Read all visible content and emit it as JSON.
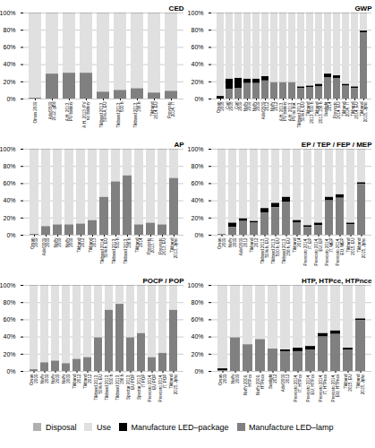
{
  "chart_data": [
    {
      "type": "bar",
      "title": "CED",
      "stacked": true,
      "grid": true,
      "legend": "bottom",
      "categories": [
        "Oman 2009",
        "Adef2009\n2012, gBd",
        "A.H. 2013,\nPV battery",
        "A.H. 2013, PV\nno battery",
        "Tikband 2013,\n50% A, EU",
        "Tikband 2013,\n500 h",
        "Tikband 2013,\n156 h",
        "Tikband\n2014, EU",
        "Prevosto\n2014, IT"
      ],
      "series": [
        {
          "name": "Disposal",
          "color": "#b0b0b0",
          "values": [
            1,
            1,
            1,
            1,
            1,
            1,
            1,
            1,
            1
          ]
        },
        {
          "name": "Use",
          "color": "#e0e0e0",
          "values": [
            98,
            70,
            69,
            69,
            91,
            89,
            87,
            92,
            90
          ]
        },
        {
          "name": "Manufacture LED–package",
          "color": "#000000",
          "values": [
            0,
            0,
            0,
            0,
            0,
            0,
            0,
            0,
            0
          ]
        },
        {
          "name": "Manufacture LED–lamp",
          "color": "#808080",
          "values": [
            1,
            29,
            30,
            30,
            8,
            10,
            12,
            7,
            9
          ]
        }
      ],
      "ylim": [
        0,
        100
      ],
      "yticks": [
        {
          "value": 0,
          "label": "0%"
        },
        {
          "value": 20,
          "label": "20%"
        },
        {
          "value": 40,
          "label": "40%"
        },
        {
          "value": 60,
          "label": "60%"
        },
        {
          "value": 80,
          "label": "80%"
        },
        {
          "value": 100,
          "label": "100%"
        }
      ]
    },
    {
      "type": "bar",
      "title": "GWP",
      "stacked": true,
      "grid": true,
      "legend": "bottom",
      "categories": [
        "Oman\n2008",
        "Curl\n2008",
        "Curl\n2009",
        "Naffy\n2009",
        "Naffy\n2009",
        "Adef2009\n2012",
        "Naffy\n2012",
        "A.H. 2013,\nPV battery",
        "A.H. 2013,\nPV no bat.",
        "Tikband 2013,\n50% h, EU",
        "Tikband\n2013, 500 h",
        "Tikband\n2013, 156 h",
        "Sunlight\n2014",
        "Prevosto\n2014, EU",
        "Tikband\n2014, IT",
        "Tikband\n2014, EU",
        "Tikband\n2015, Jpho"
      ],
      "series": [
        {
          "name": "Disposal",
          "color": "#b0b0b0",
          "values": [
            1,
            1,
            1,
            1,
            1,
            1,
            1,
            1,
            1,
            1,
            1,
            1,
            1,
            1,
            1,
            1,
            1
          ]
        },
        {
          "name": "Use",
          "color": "#e0e0e0",
          "values": [
            96,
            76,
            75,
            76,
            76,
            73,
            80,
            80,
            80,
            85,
            84,
            82,
            70,
            72,
            82,
            85,
            20
          ]
        },
        {
          "name": "Manufacture LED–package",
          "color": "#000000",
          "values": [
            3,
            12,
            12,
            5,
            5,
            5,
            0,
            0,
            0,
            2,
            2,
            3,
            4,
            3,
            2,
            2,
            2
          ]
        },
        {
          "name": "Manufacture LED–lamp",
          "color": "#808080",
          "values": [
            0,
            11,
            12,
            18,
            18,
            21,
            19,
            19,
            19,
            12,
            13,
            14,
            25,
            24,
            15,
            12,
            77
          ]
        }
      ],
      "ylim": [
        0,
        100
      ],
      "yticks": [
        {
          "value": 0,
          "label": "0%"
        },
        {
          "value": 20,
          "label": "20%"
        },
        {
          "value": 40,
          "label": "40%"
        },
        {
          "value": 60,
          "label": "60%"
        },
        {
          "value": 80,
          "label": "80%"
        },
        {
          "value": 100,
          "label": "100%"
        }
      ]
    },
    {
      "type": "bar",
      "title": "AP",
      "stacked": true,
      "grid": true,
      "legend": "bottom",
      "categories": [
        "Oman\n2009",
        "Adef2009\n2009",
        "Naffy\n2009",
        "Naffy\n2009",
        "Tikband\n2012",
        "Tikband\n2013",
        "Tikband 2014,\n50% h, EU",
        "Tikband 2013,\n500 h",
        "Tikband 2013,\n156 h",
        "Tikband\n2014",
        "Prevosto\n2013, IT",
        "Prevosto\n2013, EU",
        "Tikband\n2013, Jpho"
      ],
      "series": [
        {
          "name": "Disposal",
          "color": "#b0b0b0",
          "values": [
            1,
            1,
            1,
            1,
            1,
            1,
            1,
            1,
            1,
            1,
            1,
            1,
            1
          ]
        },
        {
          "name": "Use",
          "color": "#e0e0e0",
          "values": [
            98,
            89,
            87,
            87,
            86,
            82,
            55,
            37,
            30,
            87,
            85,
            87,
            33
          ]
        },
        {
          "name": "Manufacture LED–package",
          "color": "#000000",
          "values": [
            0,
            0,
            0,
            0,
            0,
            0,
            0,
            0,
            0,
            0,
            0,
            0,
            0
          ]
        },
        {
          "name": "Manufacture LED–lamp",
          "color": "#808080",
          "values": [
            1,
            10,
            12,
            12,
            13,
            17,
            44,
            62,
            69,
            12,
            14,
            12,
            66
          ]
        }
      ],
      "ylim": [
        0,
        100
      ],
      "yticks": [
        {
          "value": 0,
          "label": "0%"
        },
        {
          "value": 20,
          "label": "20%"
        },
        {
          "value": 40,
          "label": "40%"
        },
        {
          "value": 60,
          "label": "60%"
        },
        {
          "value": 80,
          "label": "80%"
        },
        {
          "value": 100,
          "label": "100%"
        }
      ]
    },
    {
      "type": "bar",
      "title": "EP / TEP / FEP / MEP",
      "stacked": true,
      "grid": true,
      "legend": "bottom",
      "categories": [
        "Oman\n2009",
        "Naffy\n2009",
        "Adef2009\n2012",
        "Tikband\n2012",
        "Tikband 2013,\n50% h, EU",
        "Tikband 2013,\n500 h, EU",
        "Tikband 2013,\n156 h, EU",
        "Tikband\n2014",
        "Prevosto 2014,\nIT, EP",
        "Prevosto 2014,\nEU, EP",
        "Prevosto 2014,\nIT, MEP",
        "Prevosto 2014,\nEU, MEP",
        "Tikband\n2015, EU",
        "Tikband\n2015, Jpho"
      ],
      "series": [
        {
          "name": "Disposal",
          "color": "#b0b0b0",
          "values": [
            1,
            1,
            1,
            1,
            1,
            1,
            1,
            1,
            1,
            1,
            1,
            1,
            1,
            1
          ]
        },
        {
          "name": "Use",
          "color": "#e0e0e0",
          "values": [
            98,
            85,
            80,
            83,
            68,
            62,
            55,
            82,
            88,
            85,
            55,
            52,
            85,
            38
          ]
        },
        {
          "name": "Manufacture LED–package",
          "color": "#000000",
          "values": [
            0,
            5,
            3,
            2,
            5,
            5,
            6,
            3,
            2,
            3,
            4,
            4,
            2,
            2
          ]
        },
        {
          "name": "Manufacture LED–lamp",
          "color": "#808080",
          "values": [
            1,
            9,
            16,
            14,
            26,
            32,
            38,
            14,
            9,
            11,
            40,
            43,
            12,
            59
          ]
        }
      ],
      "ylim": [
        0,
        100
      ],
      "yticks": [
        {
          "value": 0,
          "label": "0%"
        },
        {
          "value": 20,
          "label": "20%"
        },
        {
          "value": 40,
          "label": "40%"
        },
        {
          "value": 60,
          "label": "60%"
        },
        {
          "value": 80,
          "label": "80%"
        },
        {
          "value": 100,
          "label": "100%"
        }
      ]
    },
    {
      "type": "bar",
      "title": "POCP / POP",
      "stacked": true,
      "grid": true,
      "legend": "bottom",
      "categories": [
        "Oman\n2009",
        "Naffy\n2009",
        "Naffy\n2009",
        "Naffy\n2009",
        "Tikband\n2012",
        "Tikband\n2012",
        "Tikband 2013,\n50% h, EU",
        "Tikband 2013,\n500 h",
        "Tikband 2013,\n156 h",
        "Spectar 2013,\nEU POP",
        "Spectar 2013,\nIT POP",
        "Prevosto 2014,\nEU POP",
        "Prevosto 2014,\nIT, POP",
        "Tikband\n2015, Jpho"
      ],
      "series": [
        {
          "name": "Disposal",
          "color": "#b0b0b0",
          "values": [
            1,
            1,
            1,
            1,
            1,
            1,
            1,
            1,
            1,
            1,
            1,
            1,
            1,
            1
          ]
        },
        {
          "name": "Use",
          "color": "#e0e0e0",
          "values": [
            97,
            89,
            87,
            90,
            85,
            83,
            60,
            28,
            21,
            60,
            55,
            83,
            78,
            28
          ]
        },
        {
          "name": "Manufacture LED–package",
          "color": "#000000",
          "values": [
            0,
            0,
            0,
            0,
            0,
            0,
            0,
            0,
            0,
            0,
            0,
            0,
            0,
            0
          ]
        },
        {
          "name": "Manufacture LED–lamp",
          "color": "#808080",
          "values": [
            2,
            10,
            12,
            9,
            14,
            16,
            39,
            71,
            78,
            39,
            44,
            16,
            21,
            71
          ]
        }
      ],
      "ylim": [
        0,
        100
      ],
      "yticks": [
        {
          "value": 0,
          "label": "0%"
        },
        {
          "value": 20,
          "label": "20%"
        },
        {
          "value": 40,
          "label": "40%"
        },
        {
          "value": 60,
          "label": "60%"
        },
        {
          "value": 80,
          "label": "80%"
        },
        {
          "value": 100,
          "label": "100%"
        }
      ]
    },
    {
      "type": "bar",
      "title": "HTP, HTPce, HTPnce",
      "stacked": true,
      "grid": true,
      "legend": "bottom",
      "categories": [
        "Oman\n2009",
        "Naffy\n2009",
        "Naffy 2009,\nHTPce",
        "Naffy 2009,\nHTPnce",
        "Sunlight\n2012",
        "Adef2009\n2012",
        "Prevosto 2014,\nIT, HTPce",
        "Prevosto 2014,\nEU, HTPce",
        "Prevosto 2014,\nIT, HTPnce",
        "Prevosto 2014,\nEU, HTPnce",
        "Tikband\n2015, EU",
        "Tikband\n2015, Jpho"
      ],
      "series": [
        {
          "name": "Disposal",
          "color": "#b0b0b0",
          "values": [
            1,
            1,
            1,
            1,
            1,
            1,
            1,
            1,
            1,
            1,
            1,
            1
          ]
        },
        {
          "name": "Use",
          "color": "#e0e0e0",
          "values": [
            96,
            60,
            68,
            62,
            73,
            74,
            72,
            70,
            55,
            52,
            72,
            38
          ]
        },
        {
          "name": "Manufacture LED–package",
          "color": "#000000",
          "values": [
            2,
            0,
            0,
            0,
            0,
            2,
            4,
            4,
            4,
            4,
            2,
            2
          ]
        },
        {
          "name": "Manufacture LED–lamp",
          "color": "#808080",
          "values": [
            1,
            39,
            31,
            37,
            26,
            23,
            23,
            25,
            40,
            43,
            25,
            59
          ]
        }
      ],
      "ylim": [
        0,
        100
      ],
      "yticks": [
        {
          "value": 0,
          "label": "0%"
        },
        {
          "value": 20,
          "label": "20%"
        },
        {
          "value": 40,
          "label": "40%"
        },
        {
          "value": 60,
          "label": "60%"
        },
        {
          "value": 80,
          "label": "80%"
        },
        {
          "value": 100,
          "label": "100%"
        }
      ]
    }
  ]
}
